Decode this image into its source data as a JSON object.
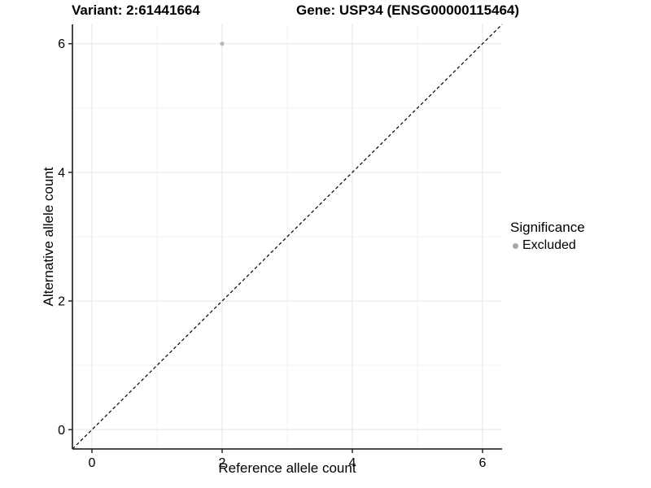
{
  "chart_data": {
    "type": "scatter",
    "title_left": "Variant: 2:61441664",
    "title_right": "Gene: USP34 (ENSG00000115464)",
    "xlabel": "Reference allele count",
    "ylabel": "Alternative allele count",
    "xlim": [
      -0.3,
      6.3
    ],
    "ylim": [
      -0.3,
      6.3
    ],
    "major_ticks": [
      0,
      2,
      4,
      6
    ],
    "minor_gridlines": [
      1,
      3,
      5
    ],
    "grid": true,
    "legend_position": "right",
    "identity_line": {
      "style": "dashed",
      "color": "#000000",
      "from": -0.3,
      "to": 6.3
    },
    "series": [
      {
        "name": "Excluded",
        "color": "#b9b9b9",
        "point_radius": 2.6,
        "points": [
          {
            "x": 2,
            "y": 6
          }
        ]
      }
    ],
    "legend": {
      "title": "Significance",
      "items": [
        {
          "label": "Excluded",
          "color": "#a6a6a6"
        }
      ]
    },
    "colors": {
      "axis": "#333333",
      "tick_label": "#000000",
      "grid_major": "#e6e6e6",
      "grid_minor": "#f2f2f2",
      "background": "#ffffff"
    }
  }
}
